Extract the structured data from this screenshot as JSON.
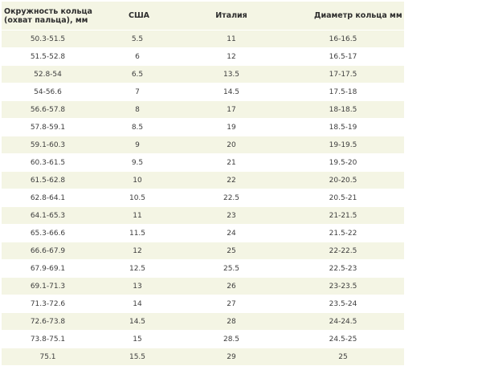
{
  "table": {
    "headers": [
      "Окружность кольца (охват пальца), мм",
      "США",
      "Италия",
      "Диаметр кольца мм"
    ],
    "rows": [
      [
        "50.3-51.5",
        "5.5",
        "11",
        "16-16.5"
      ],
      [
        "51.5-52.8",
        "6",
        "12",
        "16.5-17"
      ],
      [
        "52.8-54",
        "6.5",
        "13.5",
        "17-17.5"
      ],
      [
        "54-56.6",
        "7",
        "14.5",
        "17.5-18"
      ],
      [
        "56.6-57.8",
        "8",
        "17",
        "18-18.5"
      ],
      [
        "57.8-59.1",
        "8.5",
        "19",
        "18.5-19"
      ],
      [
        "59.1-60.3",
        "9",
        "20",
        "19-19.5"
      ],
      [
        "60.3-61.5",
        "9.5",
        "21",
        "19.5-20"
      ],
      [
        "61.5-62.8",
        "10",
        "22",
        "20-20.5"
      ],
      [
        "62.8-64.1",
        "10.5",
        "22.5",
        "20.5-21"
      ],
      [
        "64.1-65.3",
        "11",
        "23",
        "21-21.5"
      ],
      [
        "65.3-66.6",
        "11.5",
        "24",
        "21.5-22"
      ],
      [
        "66.6-67.9",
        "12",
        "25",
        "22-22.5"
      ],
      [
        "67.9-69.1",
        "12.5",
        "25.5",
        "22.5-23"
      ],
      [
        "69.1-71.3",
        "13",
        "26",
        "23-23.5"
      ],
      [
        "71.3-72.6",
        "14",
        "27",
        "23.5-24"
      ],
      [
        "72.6-73.8",
        "14.5",
        "28",
        "24-24.5"
      ],
      [
        "73.8-75.1",
        "15",
        "28.5",
        "24.5-25"
      ],
      [
        "75.1",
        "15.5",
        "29",
        "25"
      ]
    ]
  },
  "colors": {
    "stripe": "#f4f5e4",
    "background": "#ffffff",
    "text": "#3d3d3d"
  }
}
